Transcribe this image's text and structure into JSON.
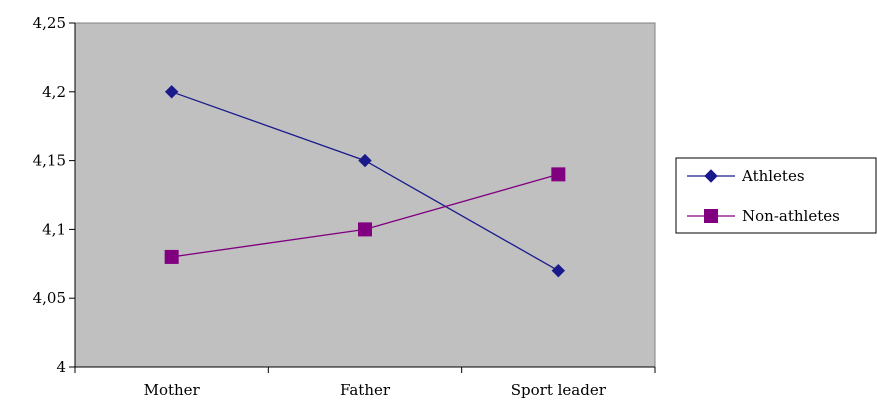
{
  "chart_data": {
    "type": "line",
    "title": "",
    "xlabel": "",
    "ylabel": "",
    "categories": [
      "Mother",
      "Father",
      "Sport leader"
    ],
    "ylim": [
      4,
      4.25
    ],
    "yticks": [
      "4",
      "4,05",
      "4,1",
      "4,15",
      "4,2",
      "4,25"
    ],
    "grid": false,
    "plot_background": "#c0c0c0",
    "legend_position": "right",
    "series": [
      {
        "name": "Athletes",
        "values": [
          4.2,
          4.15,
          4.07
        ],
        "color": "#1a1a8c",
        "marker": "diamond"
      },
      {
        "name": "Non-athletes",
        "values": [
          4.08,
          4.1,
          4.14
        ],
        "color": "#800080",
        "marker": "square"
      }
    ]
  }
}
